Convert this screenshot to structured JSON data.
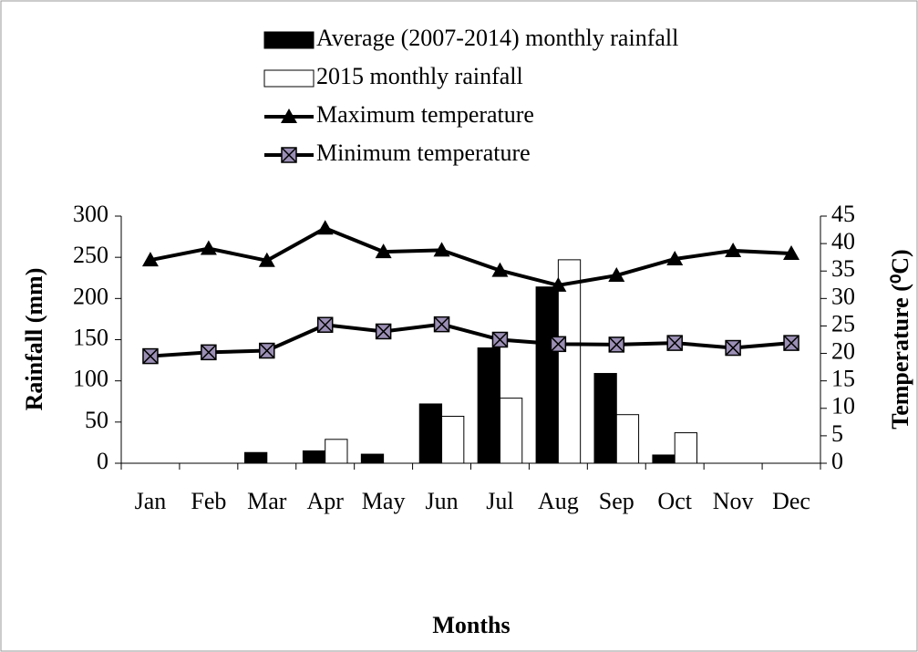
{
  "chart_data": {
    "type": "bar-line",
    "categories": [
      "Jan",
      "Feb",
      "Mar",
      "Apr",
      "May",
      "Jun",
      "Jul",
      "Aug",
      "Sep",
      "Oct",
      "Nov",
      "Dec"
    ],
    "x_label": "Months",
    "y_label": "Rainfall (mm)",
    "y2_label": "Temperature (⁰C)",
    "ylim": [
      0,
      300
    ],
    "yticks": [
      0,
      50,
      100,
      150,
      200,
      250,
      300
    ],
    "y2lim": [
      0,
      45
    ],
    "y2ticks": [
      0,
      5,
      10,
      15,
      20,
      25,
      30,
      35,
      40,
      45
    ],
    "series": [
      {
        "name": "Average (2007-2014) monthly rainfall",
        "type": "bar",
        "color": "#000000",
        "values": [
          0,
          0,
          13,
          15,
          11,
          72,
          140,
          214,
          109,
          10,
          0,
          0
        ]
      },
      {
        "name": "2015 monthly rainfall",
        "type": "bar",
        "color": "#ffffff",
        "values": [
          0,
          0,
          0,
          29,
          0,
          57,
          79,
          247,
          59,
          37,
          0,
          0
        ]
      },
      {
        "name": "Maximum temperature",
        "type": "line",
        "marker": "triangle",
        "color": "#000000",
        "axis": "y2",
        "values": [
          37.0,
          39.1,
          36.9,
          42.8,
          38.5,
          38.8,
          35.1,
          32.4,
          34.2,
          37.2,
          38.7,
          38.2
        ]
      },
      {
        "name": "Minimum temperature",
        "type": "line",
        "marker": "x-square",
        "color": "#000000",
        "axis": "y2",
        "values": [
          19.5,
          20.2,
          20.5,
          25.2,
          24.0,
          25.3,
          22.5,
          21.7,
          21.6,
          21.9,
          21.0,
          21.9
        ]
      }
    ]
  }
}
